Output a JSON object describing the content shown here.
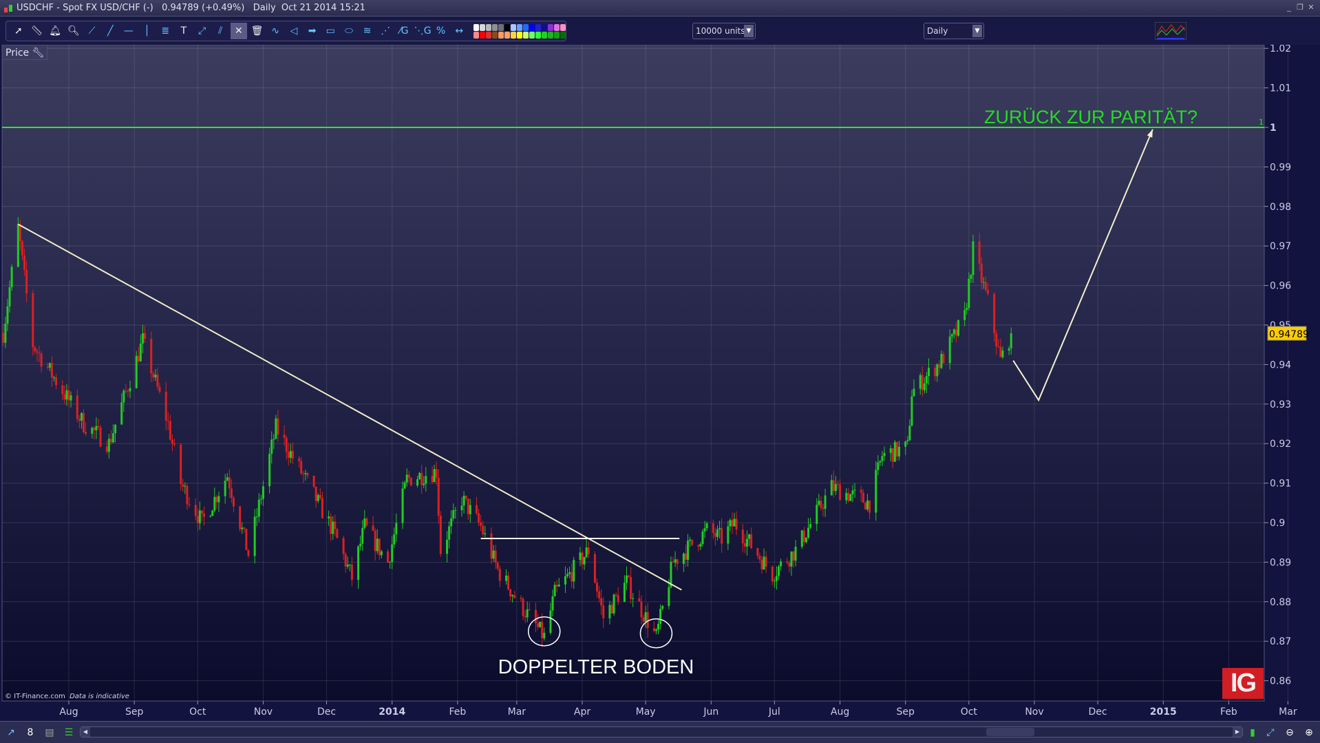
{
  "window": {
    "title": "USDCHF - Spot FX USD/CHF (-)   0.94789 (+0.49%)   Daily  Oct 21 2014 15:21"
  },
  "toolbar": {
    "tools": [
      "pointer-icon",
      "ruler-icon",
      "alert-bell-icon",
      "zoom-icon",
      "trend-line-icon",
      "extended-line-icon",
      "horizontal-line-icon",
      "vertical-line-icon",
      "fibonacci-icon",
      "text-icon",
      "ray-icon",
      "parallel-lines-icon",
      "properties-icon",
      "trash-icon",
      "channel-icon",
      "triangle-icon",
      "arrow-icon",
      "rectangle-icon",
      "ellipse-icon",
      "fib-fan-icon",
      "gann-fan-icon",
      "gann-line-icon",
      "gann-fan-g-icon",
      "percent-retracement-icon",
      "measure-icon"
    ],
    "palette": [
      "#ffffff",
      "#d8d8d8",
      "#b8b8b8",
      "#909090",
      "#707070",
      "#000000",
      "#a8c8ff",
      "#6aa0ff",
      "#1e6cff",
      "#0000ff",
      "#2222cc",
      "#10108a",
      "#9030d0",
      "#e070e0",
      "#ff90c0",
      "#ff8888",
      "#ff0000",
      "#e03030",
      "#8a4a1a",
      "#ff9a60",
      "#ffa060",
      "#ffd040",
      "#ffff00",
      "#ccff66",
      "#70ff70",
      "#30ff30",
      "#20d020",
      "#20b020",
      "#10a010",
      "#007000"
    ],
    "units_select": "10000 units",
    "interval_select": "Daily"
  },
  "price_panel_label": "Price",
  "footer": {
    "copyright": "© IT-Finance.com",
    "disclaimer": "Data is indicative"
  },
  "logo": "IG",
  "chart_data": {
    "type": "candlestick",
    "title": "",
    "ylim": [
      0.855,
      1.023
    ],
    "yticks": [
      "1.02",
      "1.01",
      "1",
      "0.99",
      "0.98",
      "0.97",
      "0.96",
      "0.95",
      "0.94",
      "0.93",
      "0.92",
      "0.91",
      "0.9",
      "0.89",
      "0.88",
      "0.87",
      "0.86"
    ],
    "xticks": [
      {
        "label": "Aug",
        "date": "2013-08-01"
      },
      {
        "label": "Sep",
        "date": "2013-09-01"
      },
      {
        "label": "Oct",
        "date": "2013-10-01"
      },
      {
        "label": "Nov",
        "date": "2013-11-01"
      },
      {
        "label": "Dec",
        "date": "2013-12-01"
      },
      {
        "label": "2014",
        "date": "2014-01-01",
        "bold": true
      },
      {
        "label": "Feb",
        "date": "2014-02-01"
      },
      {
        "label": "Mar",
        "date": "2014-03-01"
      },
      {
        "label": "Apr",
        "date": "2014-04-01"
      },
      {
        "label": "May",
        "date": "2014-05-01"
      },
      {
        "label": "Jun",
        "date": "2014-06-01"
      },
      {
        "label": "Jul",
        "date": "2014-07-01"
      },
      {
        "label": "Aug",
        "date": "2014-08-01"
      },
      {
        "label": "Sep",
        "date": "2014-09-01"
      },
      {
        "label": "Oct",
        "date": "2014-10-01"
      },
      {
        "label": "Nov",
        "date": "2014-11-01"
      },
      {
        "label": "Dec",
        "date": "2014-12-01"
      },
      {
        "label": "2015",
        "date": "2015-01-01",
        "bold": true
      },
      {
        "label": "Feb",
        "date": "2015-02-01"
      },
      {
        "label": "Mar",
        "date": "2015-03-01"
      }
    ],
    "grid": true,
    "up_color": "#22cc22",
    "down_color": "#dd2020",
    "last_price": "0.94789",
    "last_price_color": "#ffcc00",
    "approx_closes": [
      [
        "2013-07-01",
        0.948
      ],
      [
        "2013-07-08",
        0.9745
      ],
      [
        "2013-07-15",
        0.945
      ],
      [
        "2013-08-08",
        0.925
      ],
      [
        "2013-08-20",
        0.92
      ],
      [
        "2013-09-05",
        0.946
      ],
      [
        "2013-09-17",
        0.925
      ],
      [
        "2013-09-23",
        0.91
      ],
      [
        "2013-10-03",
        0.9
      ],
      [
        "2013-10-15",
        0.912
      ],
      [
        "2013-10-25",
        0.892
      ],
      [
        "2013-11-07",
        0.924
      ],
      [
        "2013-11-22",
        0.91
      ],
      [
        "2013-12-05",
        0.897
      ],
      [
        "2013-12-13",
        0.886
      ],
      [
        "2013-12-19",
        0.899
      ],
      [
        "2013-12-30",
        0.89
      ],
      [
        "2014-01-08",
        0.911
      ],
      [
        "2014-01-22",
        0.913
      ],
      [
        "2014-01-24",
        0.893
      ],
      [
        "2014-02-03",
        0.906
      ],
      [
        "2014-02-12",
        0.899
      ],
      [
        "2014-02-20",
        0.888
      ],
      [
        "2014-03-03",
        0.879
      ],
      [
        "2014-03-14",
        0.871
      ],
      [
        "2014-03-19",
        0.882
      ],
      [
        "2014-04-04",
        0.893
      ],
      [
        "2014-04-11",
        0.876
      ],
      [
        "2014-04-22",
        0.885
      ],
      [
        "2014-05-06",
        0.871
      ],
      [
        "2014-05-14",
        0.89
      ],
      [
        "2014-05-30",
        0.898
      ],
      [
        "2014-06-06",
        0.896
      ],
      [
        "2014-06-12",
        0.9
      ],
      [
        "2014-06-30",
        0.887
      ],
      [
        "2014-07-11",
        0.893
      ],
      [
        "2014-07-28",
        0.909
      ],
      [
        "2014-08-15",
        0.905
      ],
      [
        "2014-08-21",
        0.917
      ],
      [
        "2014-09-02",
        0.919
      ],
      [
        "2014-09-04",
        0.933
      ],
      [
        "2014-09-18",
        0.941
      ],
      [
        "2014-09-29",
        0.952
      ],
      [
        "2014-10-03",
        0.969
      ],
      [
        "2014-10-10",
        0.956
      ],
      [
        "2014-10-16",
        0.941
      ],
      [
        "2014-10-21",
        0.94789
      ]
    ],
    "annotations": {
      "parity_line": {
        "price": 1.0,
        "label": "1",
        "color": "#22ee22"
      },
      "parity_text": {
        "text": "ZURÜCK ZUR PARITÄT?",
        "color": "#22dd22"
      },
      "trendline": {
        "from": [
          "2013-07-08",
          0.9755
        ],
        "to": [
          "2014-05-18",
          0.883
        ],
        "color": "#f0ecc8"
      },
      "neckline": {
        "from": [
          "2014-02-12",
          0.896
        ],
        "to": [
          "2014-05-17",
          0.896
        ],
        "color": "#ffffff"
      },
      "double_bottom_circles": [
        [
          "2014-03-14",
          0.8725
        ],
        [
          "2014-05-06",
          0.872
        ]
      ],
      "double_bottom_text": "DOPPELTER BODEN",
      "projection": [
        [
          "2014-10-22",
          0.941
        ],
        [
          "2014-11-03",
          0.931
        ],
        [
          "2014-12-27",
          0.9995
        ]
      ]
    }
  },
  "bottombar": {
    "icons": [
      "chart-settings-icon",
      "link-icon",
      "indicator-list-icon",
      "order-book-icon",
      "scroll-left-icon",
      "scroll-right-icon",
      "candle-style-icon",
      "auto-zoom-icon",
      "zoom-out-icon",
      "zoom-in-icon"
    ]
  }
}
